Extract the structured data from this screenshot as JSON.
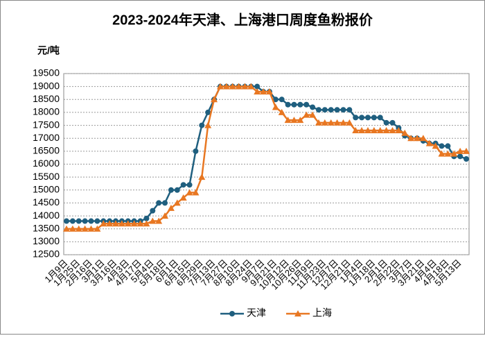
{
  "chart_data": {
    "type": "line",
    "title": "2023-2024年天津、上海港口周度鱼粉报价",
    "y_label": "元/吨",
    "categories": [
      "1月9日",
      null,
      "1月25日",
      null,
      "2月16日",
      null,
      "3月1日",
      null,
      "3月16日",
      null,
      "4月3日",
      null,
      "4月17日",
      null,
      "5月4日",
      null,
      "5月18日",
      null,
      "6月1日",
      null,
      "6月15日",
      null,
      "6月29日",
      null,
      "7月13日",
      null,
      "7月27日",
      null,
      "8月10日",
      null,
      "8月24日",
      null,
      "9月7日",
      null,
      "9月21日",
      null,
      "10月12日",
      null,
      "10月26日",
      null,
      "11月9日",
      null,
      "11月23日",
      null,
      "12月7日",
      null,
      "12月21日",
      null,
      "1月4日",
      null,
      "1月18日",
      null,
      "2月1日",
      null,
      "2月22日",
      null,
      "3月7日",
      null,
      "3月21日",
      null,
      "4月4日",
      null,
      "4月18日",
      null,
      "5月13日",
      null
    ],
    "series": [
      {
        "name": "天津",
        "color": "#1f5f7f",
        "marker": "circle",
        "values": [
          13800,
          13800,
          13800,
          13800,
          13800,
          13800,
          13800,
          13800,
          13800,
          13800,
          13800,
          13800,
          13800,
          13900,
          14200,
          14500,
          14500,
          15000,
          15000,
          15200,
          15200,
          16500,
          17500,
          18000,
          18500,
          19000,
          19000,
          19000,
          19000,
          19000,
          19000,
          19000,
          18800,
          18800,
          18500,
          18500,
          18300,
          18300,
          18300,
          18300,
          18200,
          18100,
          18100,
          18100,
          18100,
          18100,
          18100,
          17800,
          17800,
          17800,
          17800,
          17800,
          17600,
          17600,
          17400,
          17100,
          17000,
          17000,
          16900,
          16800,
          16800,
          16700,
          16700,
          16300,
          16300,
          16200
        ]
      },
      {
        "name": "上海",
        "color": "#e87722",
        "marker": "triangle",
        "values": [
          13500,
          13500,
          13500,
          13500,
          13500,
          13500,
          13700,
          13700,
          13700,
          13700,
          13700,
          13700,
          13700,
          13700,
          13800,
          13800,
          14000,
          14300,
          14500,
          14700,
          14900,
          14900,
          15500,
          17500,
          18500,
          19000,
          19000,
          19000,
          19000,
          19000,
          19000,
          18800,
          18800,
          18800,
          18200,
          18000,
          17700,
          17700,
          17700,
          17900,
          17900,
          17600,
          17600,
          17600,
          17600,
          17600,
          17600,
          17300,
          17300,
          17300,
          17300,
          17300,
          17300,
          17300,
          17300,
          17200,
          17000,
          17000,
          17000,
          16800,
          16700,
          16400,
          16400,
          16400,
          16500,
          16500
        ]
      }
    ],
    "ylim": [
      12500,
      19500
    ],
    "yticks": [
      12500,
      13000,
      13500,
      14000,
      14500,
      15000,
      15500,
      16000,
      16500,
      17000,
      17500,
      18000,
      18500,
      19000,
      19500
    ],
    "grid": true,
    "legend": "bottom"
  }
}
